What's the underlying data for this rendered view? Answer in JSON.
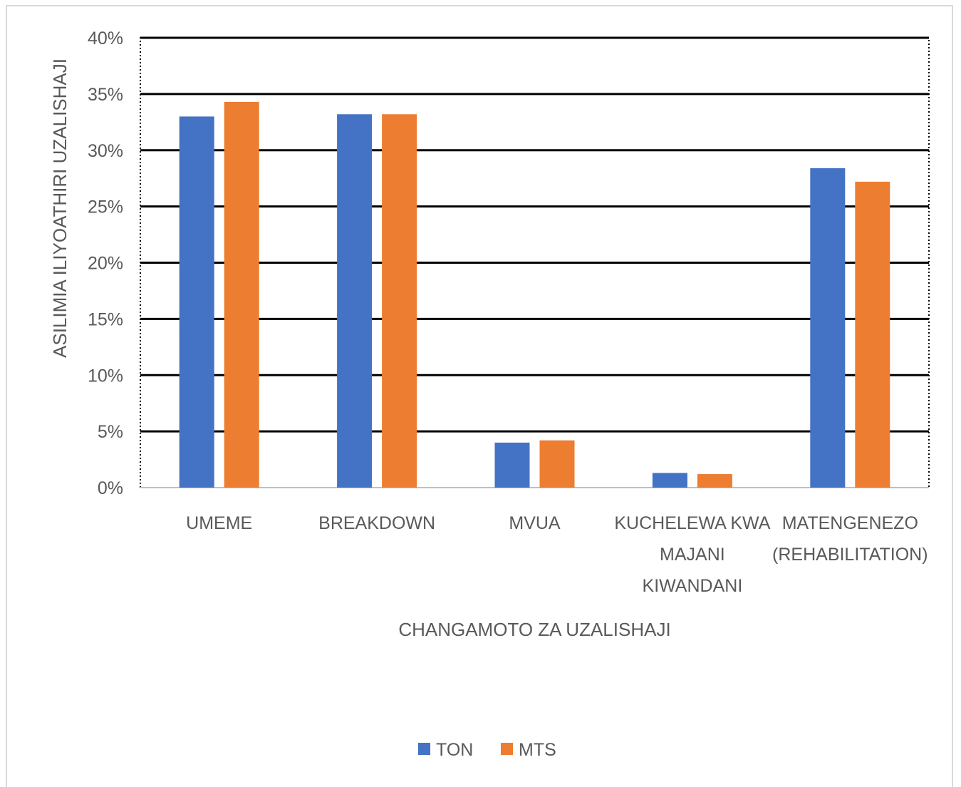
{
  "chart_data": {
    "type": "bar",
    "title": "",
    "xlabel": "CHANGAMOTO ZA UZALISHAJI",
    "ylabel": "ASILIMIA ILIYOATHIRI UZALISHAJI",
    "ylim": [
      0,
      40
    ],
    "yticks": [
      "0%",
      "5%",
      "10%",
      "15%",
      "20%",
      "25%",
      "30%",
      "35%",
      "40%"
    ],
    "categories": [
      [
        "UMEME"
      ],
      [
        "BREAKDOWN"
      ],
      [
        "MVUA"
      ],
      [
        "KUCHELEWA KWA",
        "MAJANI",
        "KIWANDANI"
      ],
      [
        "MATENGENEZO",
        "(REHABILITATION)"
      ]
    ],
    "series": [
      {
        "name": "TON",
        "color": "#4472C4",
        "values": [
          33.0,
          33.2,
          4.0,
          1.3,
          28.4
        ]
      },
      {
        "name": "MTS",
        "color": "#ED7D31",
        "values": [
          34.3,
          33.2,
          4.2,
          1.2,
          27.2
        ]
      }
    ],
    "grid": true,
    "legend": "bottom"
  }
}
